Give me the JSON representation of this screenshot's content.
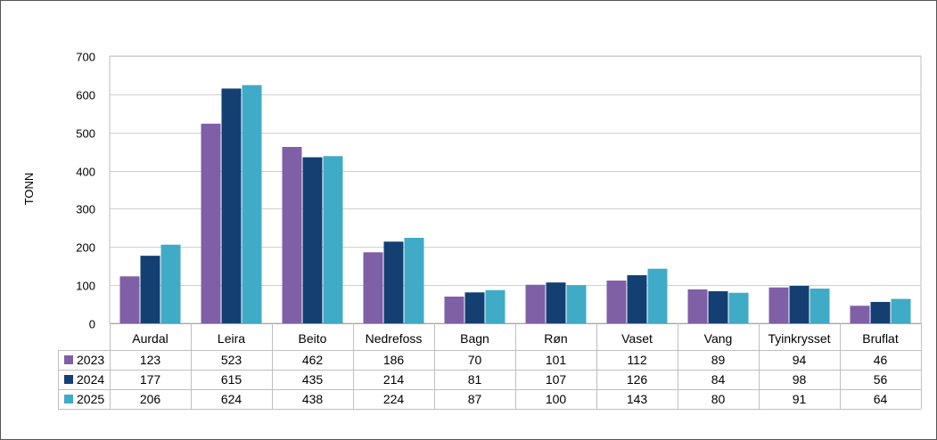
{
  "chart_data": {
    "type": "bar",
    "title": "",
    "xlabel": "",
    "ylabel": "TONN",
    "ylim": [
      0,
      700
    ],
    "yticks": [
      0,
      100,
      200,
      300,
      400,
      500,
      600,
      700
    ],
    "grid": true,
    "legend": "data-table",
    "categories": [
      "Aurdal",
      "Leira",
      "Beito",
      "Nedrefoss",
      "Bagn",
      "Røn",
      "Vaset",
      "Vang",
      "Tyinkrysset",
      "Bruflat"
    ],
    "series": [
      {
        "name": "2023",
        "color": "#7f5fa6",
        "values": [
          123,
          523,
          462,
          186,
          70,
          101,
          112,
          89,
          94,
          46
        ]
      },
      {
        "name": "2024",
        "color": "#133f73",
        "values": [
          177,
          615,
          435,
          214,
          81,
          107,
          126,
          84,
          98,
          56
        ]
      },
      {
        "name": "2025",
        "color": "#3fabc6",
        "values": [
          206,
          624,
          438,
          224,
          87,
          100,
          143,
          80,
          91,
          64
        ]
      }
    ]
  }
}
